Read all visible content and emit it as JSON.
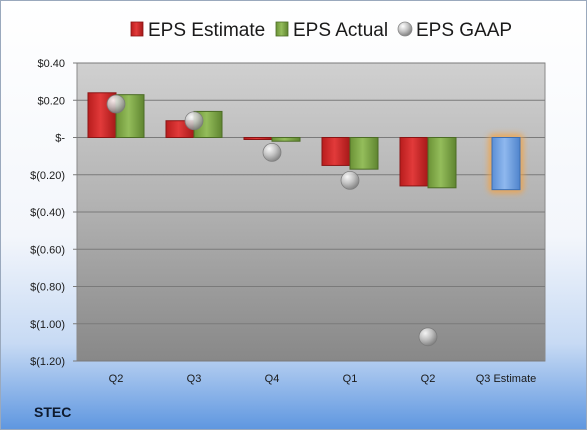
{
  "chart_data": {
    "type": "bar",
    "title": "",
    "xlabel": "",
    "ylabel": "",
    "ticker": "STEC",
    "categories": [
      "Q2",
      "Q3",
      "Q4",
      "Q1",
      "Q2",
      "Q3 Estimate"
    ],
    "ylim": [
      -1.2,
      0.4
    ],
    "yticks": [
      0.4,
      0.2,
      0,
      -0.2,
      -0.4,
      -0.6,
      -0.8,
      -1.0,
      -1.2
    ],
    "ytick_labels": [
      "$0.40",
      "$0.20",
      "$-",
      "$(0.20)",
      "$(0.40)",
      "$(0.60)",
      "$(0.80)",
      "$(1.00)",
      "$(1.20)"
    ],
    "legend_position": "top",
    "series": [
      {
        "name": "EPS Estimate",
        "type": "bar",
        "color": "#d42b2b",
        "values": [
          0.24,
          0.09,
          -0.01,
          -0.15,
          -0.26,
          null
        ]
      },
      {
        "name": "EPS Actual",
        "type": "bar",
        "color": "#7ea545",
        "values": [
          0.23,
          0.14,
          -0.02,
          -0.17,
          -0.27,
          null
        ]
      },
      {
        "name": "EPS GAAP",
        "type": "marker",
        "color": "#b8b8b8",
        "values": [
          0.18,
          0.09,
          -0.08,
          -0.23,
          -1.07,
          null
        ]
      },
      {
        "name": "Q3 Estimate",
        "type": "bar",
        "color": "#6f9fe0",
        "highlight": "#f5a343",
        "values": [
          null,
          null,
          null,
          null,
          null,
          -0.28
        ]
      }
    ]
  }
}
